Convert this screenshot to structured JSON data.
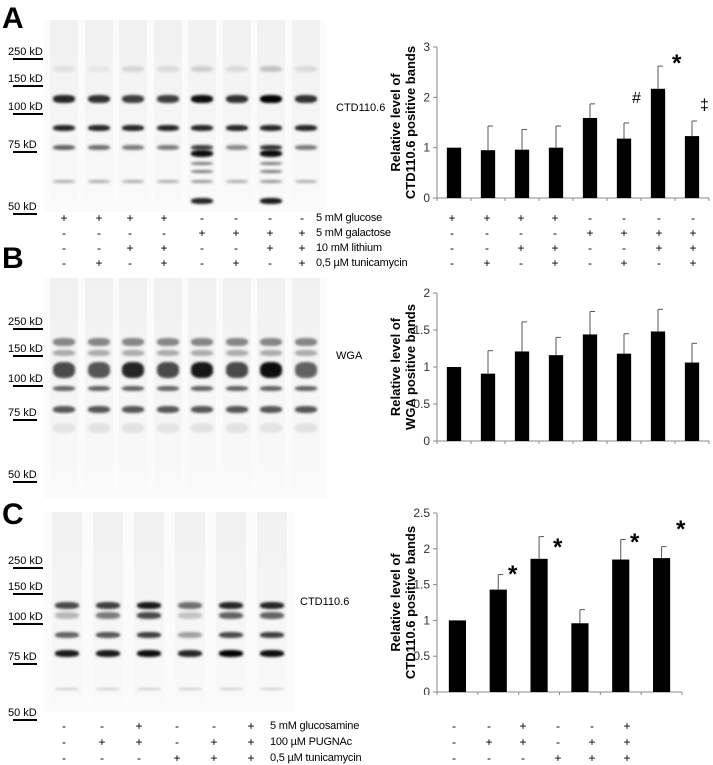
{
  "panels": [
    {
      "letter": "A",
      "antibody": "CTD110.6",
      "markers": [
        "250 kD",
        "150 kD",
        "100 kD",
        "75 kD",
        "50 kD"
      ],
      "conditions": [
        {
          "label": "5   mM glucose",
          "values": [
            "+",
            "+",
            "+",
            "+",
            "-",
            "-",
            "-",
            "-"
          ]
        },
        {
          "label": "5   mM galactose",
          "values": [
            "-",
            "-",
            "-",
            "-",
            "+",
            "+",
            "+",
            "+"
          ]
        },
        {
          "label": "10 mM lithium",
          "values": [
            "-",
            "-",
            "+",
            "+",
            "-",
            "-",
            "+",
            "+"
          ]
        },
        {
          "label": "0,5 µM tunicamycin",
          "values": [
            "-",
            "+",
            "-",
            "+",
            "-",
            "+",
            "-",
            "+"
          ]
        }
      ]
    },
    {
      "letter": "B",
      "antibody": "WGA",
      "markers": [
        "250 kD",
        "150 kD",
        "100 kD",
        "75 kD",
        "50 kD"
      ]
    },
    {
      "letter": "C",
      "antibody": "CTD110.6",
      "markers": [
        "250 kD",
        "150 kD",
        "100 kD",
        "75 kD",
        "50 kD"
      ],
      "conditions": [
        {
          "label": "5 mM glucosamine",
          "values": [
            "-",
            "-",
            "+",
            "-",
            "-",
            "+"
          ]
        },
        {
          "label": "100  µM PUGNAc",
          "values": [
            "-",
            "+",
            "+",
            "-",
            "+",
            "+"
          ]
        },
        {
          "label": "0,5  µM tunicamycin",
          "values": [
            "-",
            "-",
            "-",
            "+",
            "+",
            "+"
          ]
        }
      ]
    }
  ],
  "chart_data": [
    {
      "type": "bar",
      "title": "",
      "panel": "A",
      "xlabel": "",
      "ylabel": "Relative level of CTD110.6 positive bands",
      "ylim": [
        0,
        3
      ],
      "yticks": [
        0,
        1,
        2,
        3
      ],
      "categories": [
        "1",
        "2",
        "3",
        "4",
        "5",
        "6",
        "7",
        "8"
      ],
      "values": [
        1.0,
        0.95,
        0.96,
        1.0,
        1.59,
        1.18,
        2.17,
        1.23
      ],
      "errors": [
        0,
        0.48,
        0.4,
        0.43,
        0.28,
        0.31,
        0.45,
        0.3
      ],
      "annotations": [
        "",
        "",
        "",
        "",
        "",
        "#",
        "*",
        "‡"
      ],
      "grid": false
    },
    {
      "type": "bar",
      "title": "",
      "panel": "B",
      "xlabel": "",
      "ylabel": "Relative level of WGA positive bands",
      "ylim": [
        0,
        2
      ],
      "yticks": [
        0,
        0.5,
        1,
        1.5,
        2
      ],
      "categories": [
        "1",
        "2",
        "3",
        "4",
        "5",
        "6",
        "7",
        "8"
      ],
      "values": [
        1.0,
        0.91,
        1.21,
        1.16,
        1.44,
        1.18,
        1.48,
        1.06
      ],
      "errors": [
        0,
        0.31,
        0.4,
        0.24,
        0.31,
        0.27,
        0.3,
        0.26
      ],
      "annotations": [
        "",
        "",
        "",
        "",
        "",
        "",
        "",
        ""
      ],
      "grid": false
    },
    {
      "type": "bar",
      "title": "",
      "panel": "C",
      "xlabel": "",
      "ylabel": "Relative level of CTD110.6 positive bands",
      "ylim": [
        0,
        2.5
      ],
      "yticks": [
        0,
        0.5,
        1,
        1.5,
        2,
        2.5
      ],
      "categories": [
        "1",
        "2",
        "3",
        "4",
        "5",
        "6"
      ],
      "values": [
        1.0,
        1.43,
        1.86,
        0.96,
        1.85,
        1.87
      ],
      "errors": [
        0,
        0.21,
        0.31,
        0.19,
        0.28,
        0.16
      ],
      "annotations": [
        "",
        "*",
        "*",
        "",
        "*",
        "*"
      ],
      "grid": false
    }
  ]
}
